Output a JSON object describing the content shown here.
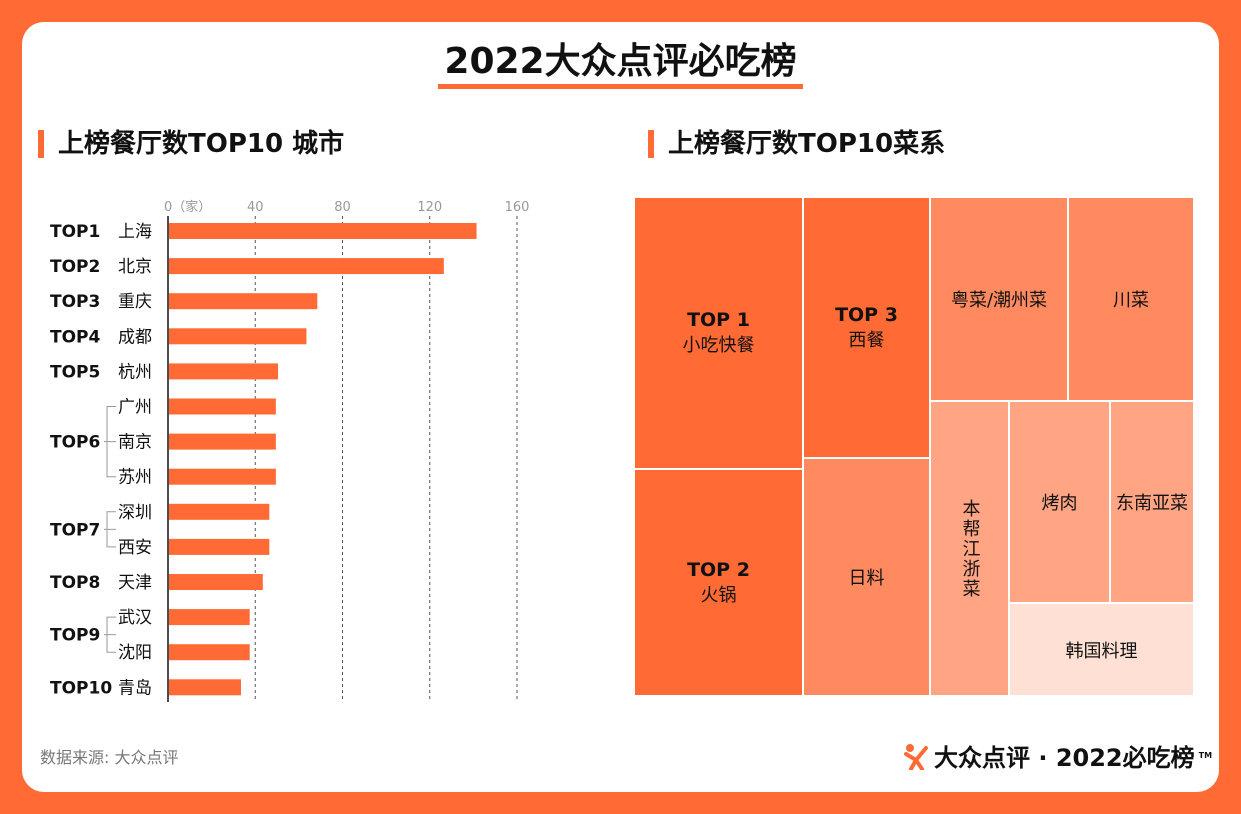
{
  "title": "2022大众点评必吃榜",
  "left_section": {
    "title": "上榜餐厅数TOP10 城市"
  },
  "right_section": {
    "title": "上榜餐厅数TOP10菜系"
  },
  "source": "数据来源: 大众点评",
  "logo": {
    "text": "大众点评 · 2022必吃榜",
    "tm": "TM"
  },
  "colors": {
    "accent": "#ff6a35",
    "medium": "#ff8a60",
    "light": "#ffa584",
    "lightest": "#ffe0d4"
  },
  "chart_data": [
    {
      "type": "bar",
      "orientation": "horizontal",
      "title": "上榜餐厅数TOP10 城市",
      "xlim": [
        0,
        160
      ],
      "xticks": [
        "0（家）",
        "40",
        "80",
        "120",
        "160"
      ],
      "grid": "vertical dashed",
      "ranks": [
        {
          "rank": "TOP1",
          "cities": [
            "上海"
          ]
        },
        {
          "rank": "TOP2",
          "cities": [
            "北京"
          ]
        },
        {
          "rank": "TOP3",
          "cities": [
            "重庆"
          ]
        },
        {
          "rank": "TOP4",
          "cities": [
            "成都"
          ]
        },
        {
          "rank": "TOP5",
          "cities": [
            "杭州"
          ]
        },
        {
          "rank": "TOP6",
          "cities": [
            "广州",
            "南京",
            "苏州"
          ]
        },
        {
          "rank": "TOP7",
          "cities": [
            "深圳",
            "西安"
          ]
        },
        {
          "rank": "TOP8",
          "cities": [
            "天津"
          ]
        },
        {
          "rank": "TOP9",
          "cities": [
            "武汉",
            "沈阳"
          ]
        },
        {
          "rank": "TOP10",
          "cities": [
            "青岛"
          ]
        }
      ],
      "categories": [
        "上海",
        "北京",
        "重庆",
        "成都",
        "杭州",
        "广州",
        "南京",
        "苏州",
        "深圳",
        "西安",
        "天津",
        "武汉",
        "沈阳",
        "青岛"
      ],
      "values": [
        141,
        126,
        68,
        63,
        50,
        49,
        49,
        49,
        46,
        46,
        43,
        37,
        37,
        33
      ]
    },
    {
      "type": "treemap",
      "title": "上榜餐厅数TOP10菜系",
      "items": [
        {
          "rank": "TOP 1",
          "label": "小吃快餐",
          "color": "#ff6a35"
        },
        {
          "rank": "TOP 2",
          "label": "火锅",
          "color": "#ff6a35"
        },
        {
          "rank": "TOP 3",
          "label": "西餐",
          "color": "#ff6a35"
        },
        {
          "label": "日料",
          "color": "#ff8a60"
        },
        {
          "label": "粤菜/潮州菜",
          "color": "#ff8a60"
        },
        {
          "label": "川菜",
          "color": "#ff8a60"
        },
        {
          "label": "本帮江浙菜",
          "color": "#ffa584"
        },
        {
          "label": "烤肉",
          "color": "#ffa584"
        },
        {
          "label": "东南亚菜",
          "color": "#ffa584"
        },
        {
          "label": "韩国料理",
          "color": "#ffe0d4"
        }
      ]
    }
  ]
}
